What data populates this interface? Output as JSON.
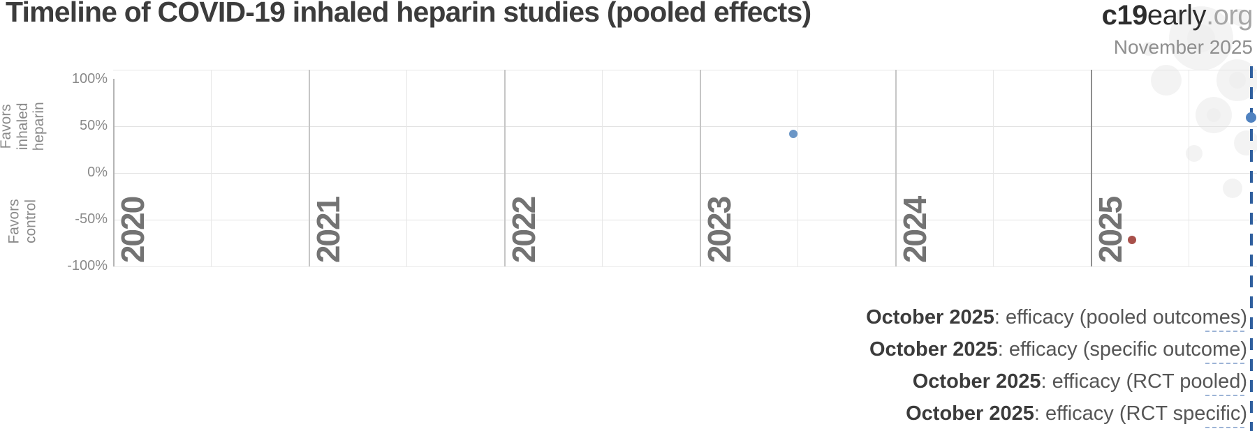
{
  "header": {
    "title": "Timeline of COVID-19 inhaled heparin studies (pooled effects)",
    "brand": {
      "bold": "c19",
      "name": "early",
      "tld": ".org"
    },
    "as_of": "November 2025"
  },
  "chart_data": {
    "type": "scatter",
    "title": "Timeline of COVID-19 inhaled heparin studies (pooled effects)",
    "x_axis": {
      "tick_years": [
        2020,
        2021,
        2022,
        2023,
        2024,
        2025
      ],
      "range": [
        2020,
        2025.85
      ],
      "minor_gridlines": "half-year"
    },
    "y_axis": {
      "range": [
        -100,
        100
      ],
      "ticks": [
        {
          "value": 100,
          "label": "100%"
        },
        {
          "value": 50,
          "label": "50%"
        },
        {
          "value": 0,
          "label": "0%"
        },
        {
          "value": -50,
          "label": "-50%"
        },
        {
          "value": -100,
          "label": "-100%"
        }
      ],
      "label_positive": "Favors\ninhaled heparin",
      "label_negative": "Favors\ncontrol"
    },
    "grid": true,
    "legend_position": "none",
    "points": [
      {
        "x": 2023.48,
        "date": "mid 2023",
        "effect_pct": 42,
        "direction": "favors-heparin",
        "size": "small"
      },
      {
        "x": 2025.21,
        "date": "early 2025",
        "effect_pct": -72,
        "direction": "favors-control",
        "size": "small"
      },
      {
        "x": 2025.82,
        "date": "November 2025",
        "effect_pct": 59,
        "direction": "favors-heparin",
        "size": "large"
      }
    ],
    "now_line": {
      "x": 2025.82,
      "label": "November 2025",
      "style": "dashed"
    }
  },
  "annotations": [
    {
      "date": "October 2025",
      "text": ": efficacy (pooled outcomes)"
    },
    {
      "date": "October 2025",
      "text": ": efficacy (specific outcome)"
    },
    {
      "date": "October 2025",
      "text": ": efficacy (RCT pooled)"
    },
    {
      "date": "October 2025",
      "text": ": efficacy (RCT specific)"
    }
  ],
  "colors": {
    "favors_heparin_dot": "#6b96c6",
    "current_pooled_dot": "#5082c0",
    "favors_control_dot": "#a8504a",
    "now_line": "#2f5f9e",
    "annotation_underline": "#9db4d6",
    "grid_major": "#c6c6c6",
    "grid_minor": "#e7e7e7",
    "axis_text": "#8a8a8a",
    "year_label_text": "#737373"
  }
}
